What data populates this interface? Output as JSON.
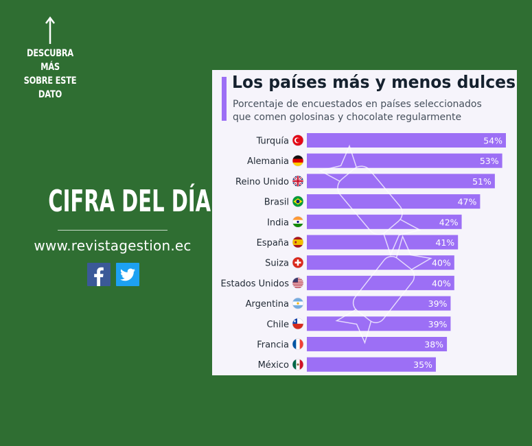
{
  "cta": {
    "text": "DESCUBRA MÁS\nSOBRE ESTE\nDATO",
    "icon": "up-arrow-icon"
  },
  "headline": "CIFRA DEL DÍA",
  "site_url": "www.revistagestion.ec",
  "social": [
    {
      "name": "facebook-icon",
      "label": "f",
      "color": "#3b5998"
    },
    {
      "name": "twitter-icon",
      "label": "t",
      "color": "#1da1f2"
    }
  ],
  "colors": {
    "background": "#2f6e32",
    "card": "#f6f4fb",
    "bar": "#9c6ff5",
    "title": "#15212e"
  },
  "chart_data": {
    "type": "bar",
    "orientation": "horizontal",
    "title": "Los países más y menos dulces",
    "subtitle": "Porcentaje de encuestados en países seleccionados\nque comen golosinas y chocolate regularmente",
    "categories": [
      "Turquía",
      "Alemania",
      "Reino Unido",
      "Brasil",
      "India",
      "España",
      "Suiza",
      "Estados Unidos",
      "Argentina",
      "Chile",
      "Francia",
      "México"
    ],
    "flags": [
      "flag-turkey-icon",
      "flag-germany-icon",
      "flag-uk-icon",
      "flag-brazil-icon",
      "flag-india-icon",
      "flag-spain-icon",
      "flag-switzerland-icon",
      "flag-usa-icon",
      "flag-argentina-icon",
      "flag-chile-icon",
      "flag-france-icon",
      "flag-mexico-icon"
    ],
    "values": [
      54,
      53,
      51,
      47,
      42,
      41,
      40,
      40,
      39,
      39,
      38,
      35
    ],
    "labels": [
      "54%",
      "53%",
      "51%",
      "47%",
      "42%",
      "41%",
      "40%",
      "40%",
      "39%",
      "39%",
      "38%",
      "35%"
    ],
    "unit": "%",
    "xlim": [
      0,
      54
    ],
    "grid": false,
    "legend": "none"
  }
}
